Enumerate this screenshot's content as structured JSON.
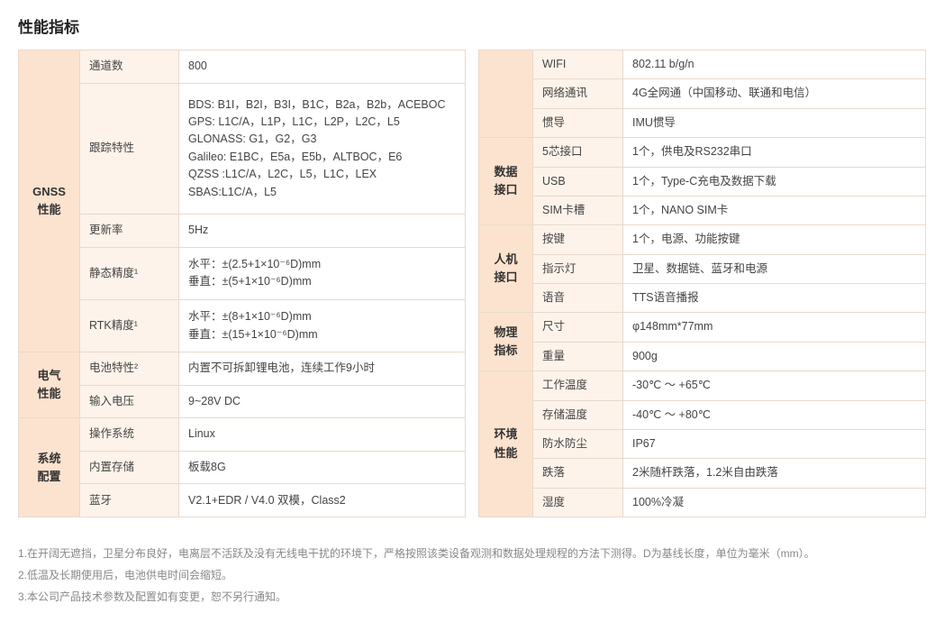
{
  "title": "性能指标",
  "left": {
    "gnss": {
      "cat": "GNSS\n性能",
      "r0p": "通道数",
      "r0v": "800",
      "r1p": "跟踪特性",
      "r1v": "BDS: B1I，B2I，B3I，B1C，B2a，B2b，ACEBOC\nGPS: L1C/A，L1P，L1C，L2P，L2C，L5\nGLONASS: G1，G2，G3\nGalileo: E1BC，E5a，E5b，ALTBOC，E6\nQZSS :L1C/A，L2C，L5，L1C，LEX\nSBAS:L1C/A，L5",
      "r2p": "更新率",
      "r2v": "5Hz",
      "r3p": "静态精度¹",
      "r3v": "水平：±(2.5+1×10⁻⁶D)mm\n垂直：±(5+1×10⁻⁶D)mm",
      "r4p": "RTK精度¹",
      "r4v": "水平：±(8+1×10⁻⁶D)mm\n垂直：±(15+1×10⁻⁶D)mm"
    },
    "elec": {
      "cat": "电气\n性能",
      "r0p": "电池特性²",
      "r0v": "内置不可拆卸锂电池，连续工作9小时",
      "r1p": "输入电压",
      "r1v": "9~28V DC"
    },
    "sys": {
      "cat": "系统\n配置",
      "r0p": "操作系统",
      "r0v": "Linux",
      "r1p": "内置存储",
      "r1v": "板载8G",
      "r2p": "蓝牙",
      "r2v": "V2.1+EDR / V4.0 双模，Class2"
    }
  },
  "right": {
    "sysc": {
      "r0p": "WIFI",
      "r0v": "802.11 b/g/n",
      "r1p": "网络通讯",
      "r1v": "4G全网通（中国移动、联通和电信）",
      "r2p": "惯导",
      "r2v": "IMU惯导"
    },
    "data": {
      "cat": "数据\n接口",
      "r0p": "5芯接口",
      "r0v": "1个，供电及RS232串口",
      "r1p": "USB",
      "r1v": "1个，Type-C充电及数据下载",
      "r2p": "SIM卡槽",
      "r2v": "1个，NANO SIM卡"
    },
    "hmi": {
      "cat": "人机\n接口",
      "r0p": "按键",
      "r0v": "1个，电源、功能按键",
      "r1p": "指示灯",
      "r1v": "卫星、数据链、蓝牙和电源",
      "r2p": "语音",
      "r2v": "TTS语音播报"
    },
    "phys": {
      "cat": "物理\n指标",
      "r0p": "尺寸",
      "r0v": "φ148mm*77mm",
      "r1p": "重量",
      "r1v": "900g"
    },
    "env": {
      "cat": "环境\n性能",
      "r0p": "工作温度",
      "r0v": "-30℃ ～ +65℃",
      "r1p": "存储温度",
      "r1v": "-40℃ ～ +80℃",
      "r2p": "防水防尘",
      "r2v": "IP67",
      "r3p": "跌落",
      "r3v": "2米随杆跌落，1.2米自由跌落",
      "r4p": "湿度",
      "r4v": "100%冷凝"
    }
  },
  "notes": {
    "n1": "1.在开阔无遮挡，卫星分布良好，电离层不活跃及没有无线电干扰的环境下，严格按照该类设备观测和数据处理规程的方法下测得。D为基线长度，单位为毫米（mm）。",
    "n2": "2.低温及长期使用后，电池供电时间会缩短。",
    "n3": "3.本公司产品技术参数及配置如有变更，恕不另行通知。"
  },
  "style": {
    "cat_bg": "#fbe3cf",
    "param_bg": "#fdf3ea",
    "val_bg": "#ffffff",
    "border": "#e8d9cc",
    "title_color": "#222",
    "text_color": "#444",
    "note_color": "#888"
  }
}
